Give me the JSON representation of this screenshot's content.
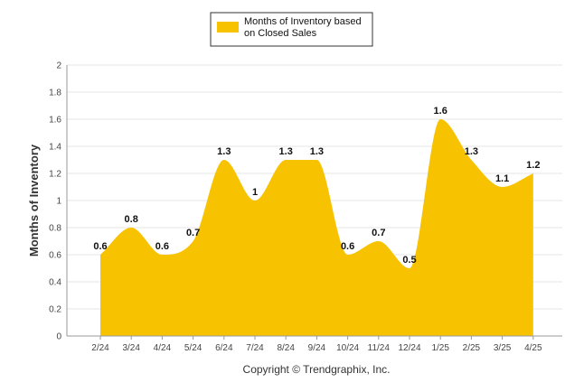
{
  "chart_data": {
    "type": "area",
    "categories": [
      "2/24",
      "3/24",
      "4/24",
      "5/24",
      "6/24",
      "7/24",
      "8/24",
      "9/24",
      "10/24",
      "11/24",
      "12/24",
      "1/25",
      "2/25",
      "3/25",
      "4/25"
    ],
    "series": [
      {
        "name": "Months of Inventory based on Closed Sales",
        "values": [
          0.6,
          0.8,
          0.6,
          0.7,
          1.3,
          1.0,
          1.3,
          1.3,
          0.6,
          0.7,
          0.5,
          1.6,
          1.3,
          1.1,
          1.2
        ],
        "data_labels": [
          "0.6",
          "0.8",
          "0.6",
          "0.7",
          "1.3",
          "1",
          "1.3",
          "1.3",
          "0.6",
          "0.7",
          "0.5",
          "1.6",
          "1.3",
          "1.1",
          "1.2"
        ]
      }
    ],
    "title": "",
    "xlabel": "",
    "ylabel": "Months of Inventory",
    "ylim": [
      0,
      2
    ],
    "yticks": [
      0,
      0.2,
      0.4,
      0.6,
      0.8,
      1,
      1.2,
      1.4,
      1.6,
      1.8,
      2
    ],
    "ytick_labels": [
      "0",
      "0.2",
      "0.4",
      "0.6",
      "0.8",
      "1",
      "1.2",
      "1.4",
      "1.6",
      "1.8",
      "2"
    ],
    "grid": true,
    "legend_position": "top-center",
    "legend_lines": [
      "Months of Inventory based",
      "on Closed Sales"
    ],
    "footer": "Copyright © Trendgraphix, Inc.",
    "colors": {
      "fill": "#F7C200",
      "grid": "#E6E6E6",
      "axis": "#999999"
    }
  }
}
